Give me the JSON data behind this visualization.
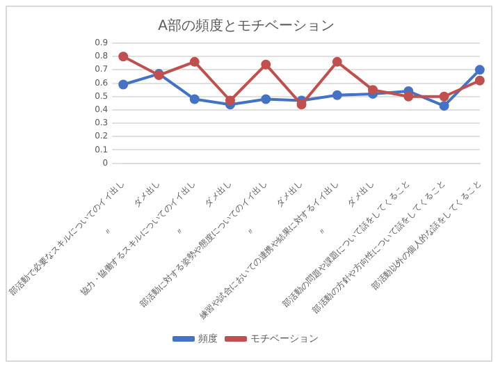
{
  "chart_data": {
    "type": "line",
    "title": "A部の頻度とモチベーション",
    "categories": [
      "部活動で必要なスキルについてのイイ出し",
      "〃　　　　ダメ出し",
      "協力・協働するスキルについてのイイ出し",
      "〃　　　　ダメ出し",
      "部活動に対する姿勢や態度についてのイイ出し",
      "〃　　　　ダメ出し",
      "練習や試合においての連携や結果に対するイイ出し",
      "〃　　　　ダメ出し",
      "部活動の問題や課題について話をしてくること",
      "部活動の方針や方向性について話をしてくること",
      "部活動以外の個人的な話をしてくること"
    ],
    "series": [
      {
        "name": "頻度",
        "color": "#4472c4",
        "values": [
          0.59,
          0.67,
          0.48,
          0.44,
          0.48,
          0.47,
          0.51,
          0.52,
          0.54,
          0.43,
          0.7
        ]
      },
      {
        "name": "モチベーション",
        "color": "#c0504d",
        "values": [
          0.8,
          0.66,
          0.76,
          0.47,
          0.74,
          0.44,
          0.76,
          0.55,
          0.5,
          0.5,
          0.62
        ]
      }
    ],
    "ylim": [
      0,
      0.9
    ],
    "yticks": [
      0,
      0.1,
      0.2,
      0.3,
      0.4,
      0.5,
      0.6,
      0.7,
      0.8,
      0.9
    ],
    "grid": "y",
    "legend": "bottom",
    "marker": "circle",
    "line_style": "solid"
  }
}
